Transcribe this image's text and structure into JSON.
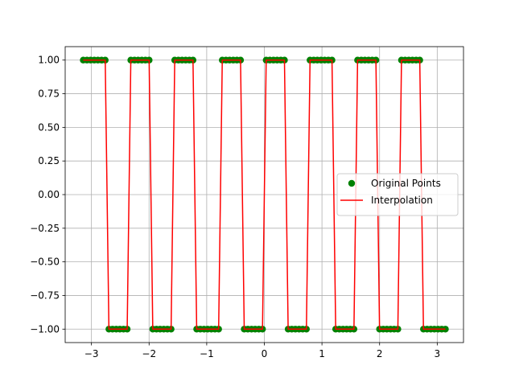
{
  "chart_data": {
    "type": "line",
    "x": [
      -3.142,
      -3.078,
      -3.015,
      -2.951,
      -2.888,
      -2.824,
      -2.761,
      -2.697,
      -2.634,
      -2.57,
      -2.507,
      -2.443,
      -2.38,
      -2.317,
      -2.253,
      -2.19,
      -2.126,
      -2.063,
      -1.999,
      -1.936,
      -1.872,
      -1.809,
      -1.745,
      -1.682,
      -1.618,
      -1.555,
      -1.491,
      -1.428,
      -1.365,
      -1.301,
      -1.238,
      -1.174,
      -1.111,
      -1.047,
      -0.984,
      -0.92,
      -0.857,
      -0.793,
      -0.73,
      -0.666,
      -0.603,
      -0.539,
      -0.476,
      -0.413,
      -0.349,
      -0.286,
      -0.222,
      -0.159,
      -0.095,
      -0.032,
      0.032,
      0.095,
      0.159,
      0.222,
      0.286,
      0.349,
      0.413,
      0.476,
      0.539,
      0.603,
      0.666,
      0.73,
      0.793,
      0.857,
      0.92,
      0.984,
      1.047,
      1.111,
      1.174,
      1.238,
      1.301,
      1.365,
      1.428,
      1.491,
      1.555,
      1.618,
      1.682,
      1.745,
      1.809,
      1.872,
      1.936,
      1.999,
      2.063,
      2.126,
      2.19,
      2.253,
      2.317,
      2.38,
      2.443,
      2.507,
      2.57,
      2.634,
      2.697,
      2.761,
      2.824,
      2.888,
      2.951,
      3.015,
      3.078,
      3.142
    ],
    "series": [
      {
        "name": "Original Points",
        "color": "green",
        "style": "markers",
        "values": [
          1,
          1,
          1,
          1,
          1,
          1,
          1,
          -1,
          -1,
          -1,
          -1,
          -1,
          -1,
          1,
          1,
          1,
          1,
          1,
          1,
          -1,
          -1,
          -1,
          -1,
          -1,
          -1,
          1,
          1,
          1,
          1,
          1,
          1,
          -1,
          -1,
          -1,
          -1,
          -1,
          -1,
          -1,
          1,
          1,
          1,
          1,
          1,
          1,
          -1,
          -1,
          -1,
          -1,
          -1,
          -1,
          1,
          1,
          1,
          1,
          1,
          1,
          -1,
          -1,
          -1,
          -1,
          -1,
          -1,
          1,
          1,
          1,
          1,
          1,
          1,
          1,
          -1,
          -1,
          -1,
          -1,
          -1,
          -1,
          1,
          1,
          1,
          1,
          1,
          1,
          -1,
          -1,
          -1,
          -1,
          -1,
          -1,
          1,
          1,
          1,
          1,
          1,
          1,
          -1,
          -1,
          -1,
          -1,
          -1,
          -1,
          -1
        ]
      },
      {
        "name": "Interpolation",
        "color": "red",
        "style": "line",
        "values": [
          1,
          1,
          1,
          1,
          1,
          1,
          1,
          -1,
          -1,
          -1,
          -1,
          -1,
          -1,
          1,
          1,
          1,
          1,
          1,
          1,
          -1,
          -1,
          -1,
          -1,
          -1,
          -1,
          1,
          1,
          1,
          1,
          1,
          1,
          -1,
          -1,
          -1,
          -1,
          -1,
          -1,
          -1,
          1,
          1,
          1,
          1,
          1,
          1,
          -1,
          -1,
          -1,
          -1,
          -1,
          -1,
          1,
          1,
          1,
          1,
          1,
          1,
          -1,
          -1,
          -1,
          -1,
          -1,
          -1,
          1,
          1,
          1,
          1,
          1,
          1,
          1,
          -1,
          -1,
          -1,
          -1,
          -1,
          -1,
          1,
          1,
          1,
          1,
          1,
          1,
          -1,
          -1,
          -1,
          -1,
          -1,
          -1,
          1,
          1,
          1,
          1,
          1,
          1,
          -1,
          -1,
          -1,
          -1,
          -1,
          -1,
          -1
        ]
      }
    ],
    "xlim": [
      -3.456,
      3.456
    ],
    "ylim": [
      -1.1,
      1.1
    ],
    "xticks": [
      {
        "value": -3,
        "label": "−3"
      },
      {
        "value": -2,
        "label": "−2"
      },
      {
        "value": -1,
        "label": "−1"
      },
      0,
      1,
      2,
      3
    ],
    "yticks": [
      {
        "value": -1,
        "label": "−1.00"
      },
      {
        "value": -0.75,
        "label": "−0.75"
      },
      {
        "value": -0.5,
        "label": "−0.50"
      },
      {
        "value": -0.25,
        "label": "−0.25"
      },
      {
        "value": 0,
        "label": "0.00"
      },
      {
        "value": 0.25,
        "label": "0.25"
      },
      {
        "value": 0.5,
        "label": "0.50"
      },
      {
        "value": 0.75,
        "label": "0.75"
      },
      {
        "value": 1,
        "label": "1.00"
      }
    ],
    "grid": true,
    "legend": "center right"
  }
}
